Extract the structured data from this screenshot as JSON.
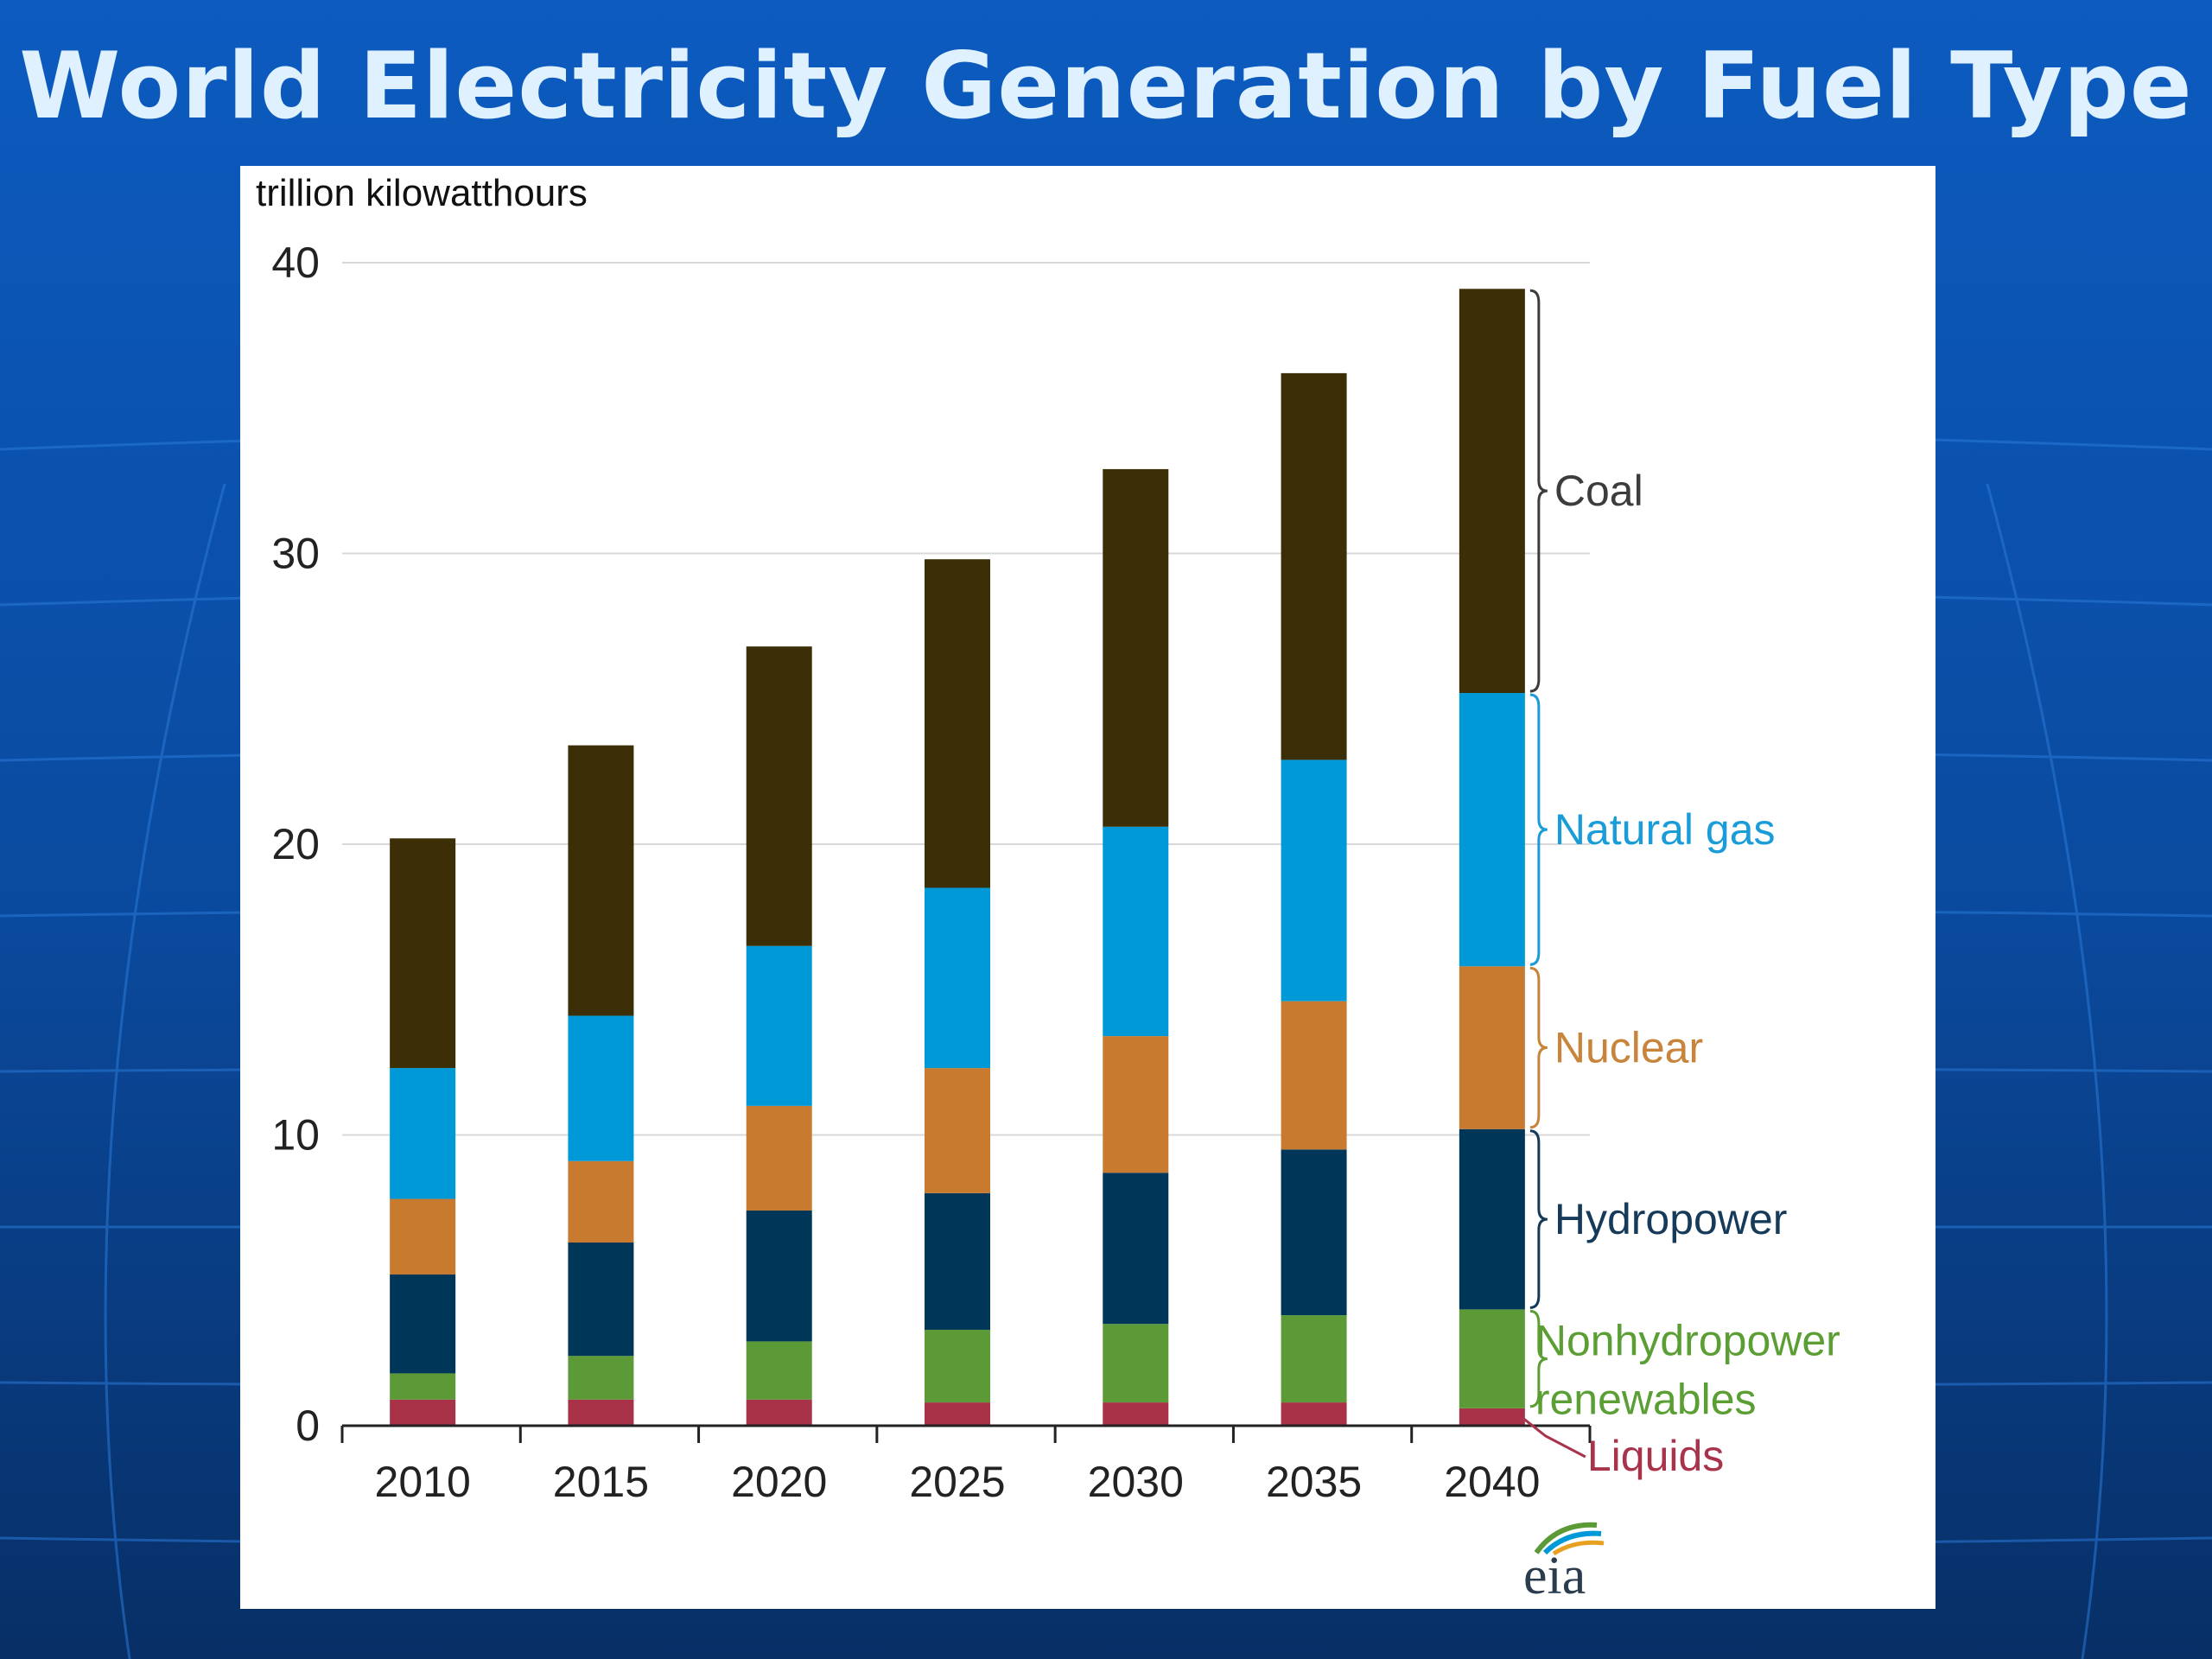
{
  "slide": {
    "title": "World Electricity Generation by Fuel Type"
  },
  "logo": {
    "text": "eia"
  },
  "chart_data": {
    "type": "bar",
    "stacked": true,
    "title": "World Electricity Generation by Fuel Type",
    "ylabel": "trillion  kilowatthours",
    "xlabel": "",
    "ylim": [
      0,
      40
    ],
    "yticks": [
      0,
      10,
      20,
      30,
      40
    ],
    "grid": true,
    "legend_placement": "right (bracket labels beside last bar)",
    "categories": [
      "2010",
      "2015",
      "2020",
      "2025",
      "2030",
      "2035",
      "2040"
    ],
    "series": [
      {
        "name": "Liquids",
        "color": "#a83248",
        "values": [
          0.9,
          0.9,
          0.9,
          0.8,
          0.8,
          0.8,
          0.6
        ]
      },
      {
        "name": "Nonhydropower renewables",
        "color": "#5c9a38",
        "values": [
          0.9,
          1.5,
          2.0,
          2.5,
          2.7,
          3.0,
          3.4
        ]
      },
      {
        "name": "Hydropower",
        "color": "#003658",
        "values": [
          3.4,
          3.9,
          4.5,
          4.7,
          5.2,
          5.7,
          6.2
        ]
      },
      {
        "name": "Nuclear",
        "color": "#c87a2e",
        "values": [
          2.6,
          2.8,
          3.6,
          4.3,
          4.7,
          5.1,
          5.6
        ]
      },
      {
        "name": "Natural gas",
        "color": "#0099d8",
        "values": [
          4.5,
          5.0,
          5.5,
          6.2,
          7.2,
          8.3,
          9.4
        ]
      },
      {
        "name": "Coal",
        "color": "#3c2f08",
        "values": [
          7.9,
          9.3,
          10.3,
          11.3,
          12.3,
          13.3,
          13.9
        ]
      }
    ],
    "legend": [
      {
        "series": "Coal",
        "line1": "Coal",
        "line2": "",
        "color": "#3c3c3c"
      },
      {
        "series": "Natural gas",
        "line1": "Natural  gas",
        "line2": "",
        "color": "#1a9cd8"
      },
      {
        "series": "Nuclear",
        "line1": "Nuclear",
        "line2": "",
        "color": "#c8843a"
      },
      {
        "series": "Hydropower",
        "line1": "Hydropower",
        "line2": "",
        "color": "#153a5a"
      },
      {
        "series": "Nonhydropower renewables",
        "line1": "Nonhydropower",
        "line2": "renewables",
        "color": "#5a9e34"
      },
      {
        "series": "Liquids",
        "line1": "Liquids",
        "line2": "",
        "color": "#a8334a"
      }
    ]
  }
}
